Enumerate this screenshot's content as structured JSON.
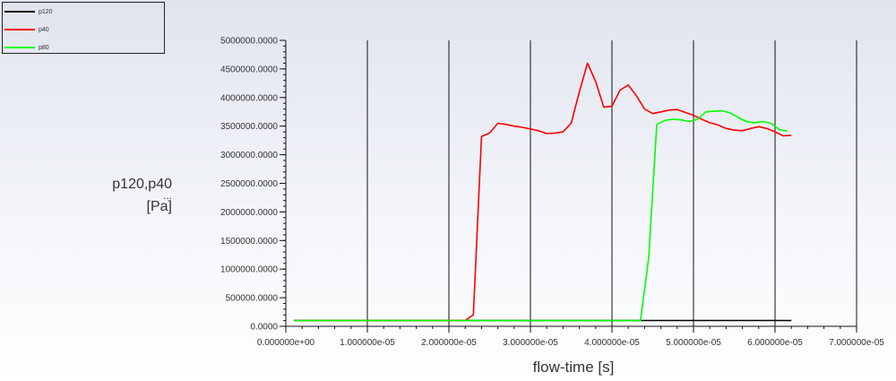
{
  "legend": [
    {
      "name": "p120",
      "color": "#000000"
    },
    {
      "name": "p40",
      "color": "#ff0000"
    },
    {
      "name": "p80",
      "color": "#00ff00"
    }
  ],
  "chart_data": {
    "type": "line",
    "title": "",
    "xlabel": "flow-time [s]",
    "ylabel_line1": "p120,p40",
    "ylabel_dots": "...",
    "ylabel_unit": "[Pa]",
    "xlim": [
      0,
      7e-05
    ],
    "ylim": [
      0,
      5000000
    ],
    "x_ticks": [
      0,
      1e-05,
      2e-05,
      3e-05,
      4e-05,
      5e-05,
      6e-05,
      7e-05
    ],
    "x_tick_labels": [
      "0.000000e+00",
      "1.000000e-05",
      "2.000000e-05",
      "3.000000e-05",
      "4.000000e-05",
      "5.000000e-05",
      "6.000000e-05",
      "7.000000e-05"
    ],
    "y_ticks": [
      0,
      500000,
      1000000,
      1500000,
      2000000,
      2500000,
      3000000,
      3500000,
      4000000,
      4500000,
      5000000
    ],
    "y_tick_labels": [
      "0.0000",
      "500000.0000",
      "1000000.0000",
      "1500000.0000",
      "2000000.0000",
      "2500000.0000",
      "3000000.0000",
      "3500000.0000",
      "4000000.0000",
      "4500000.0000",
      "5000000.0000"
    ],
    "grid": "vertical",
    "legend_position": "top-left",
    "series": [
      {
        "name": "p120",
        "color": "#000000",
        "x": [
          1e-06,
          4.4e-05,
          6.2e-05
        ],
        "y": [
          101325,
          101325,
          101325
        ]
      },
      {
        "name": "p40",
        "color": "#ff0000",
        "x": [
          1e-06,
          2.2e-05,
          2.3e-05,
          2.4e-05,
          2.5e-05,
          2.6e-05,
          2.7e-05,
          2.8e-05,
          2.9e-05,
          3e-05,
          3.1e-05,
          3.2e-05,
          3.3e-05,
          3.4e-05,
          3.5e-05,
          3.6e-05,
          3.7e-05,
          3.8e-05,
          3.9e-05,
          4e-05,
          4.1e-05,
          4.2e-05,
          4.3e-05,
          4.4e-05,
          4.5e-05,
          4.6e-05,
          4.7e-05,
          4.8e-05,
          4.9e-05,
          5e-05,
          5.1e-05,
          5.2e-05,
          5.3e-05,
          5.4e-05,
          5.5e-05,
          5.6e-05,
          5.7e-05,
          5.8e-05,
          5.9e-05,
          6e-05,
          6.1e-05,
          6.2e-05
        ],
        "y": [
          101325,
          101325,
          200000,
          3320000,
          3380000,
          3550000,
          3530000,
          3500000,
          3480000,
          3450000,
          3420000,
          3370000,
          3380000,
          3400000,
          3550000,
          4100000,
          4600000,
          4280000,
          3830000,
          3850000,
          4130000,
          4220000,
          4030000,
          3800000,
          3720000,
          3750000,
          3780000,
          3790000,
          3740000,
          3690000,
          3620000,
          3560000,
          3520000,
          3460000,
          3430000,
          3420000,
          3460000,
          3490000,
          3460000,
          3400000,
          3330000,
          3340000
        ]
      },
      {
        "name": "p80",
        "color": "#00ff00",
        "x": [
          1e-06,
          4.35e-05,
          4.45e-05,
          4.55e-05,
          4.65e-05,
          4.75e-05,
          4.85e-05,
          4.95e-05,
          5.05e-05,
          5.15e-05,
          5.25e-05,
          5.35e-05,
          5.45e-05,
          5.55e-05,
          5.65e-05,
          5.75e-05,
          5.85e-05,
          5.95e-05,
          6.05e-05,
          6.15e-05
        ],
        "y": [
          101325,
          101325,
          1200000,
          3530000,
          3600000,
          3620000,
          3610000,
          3580000,
          3620000,
          3750000,
          3760000,
          3770000,
          3730000,
          3650000,
          3580000,
          3560000,
          3580000,
          3550000,
          3440000,
          3410000
        ]
      }
    ]
  }
}
